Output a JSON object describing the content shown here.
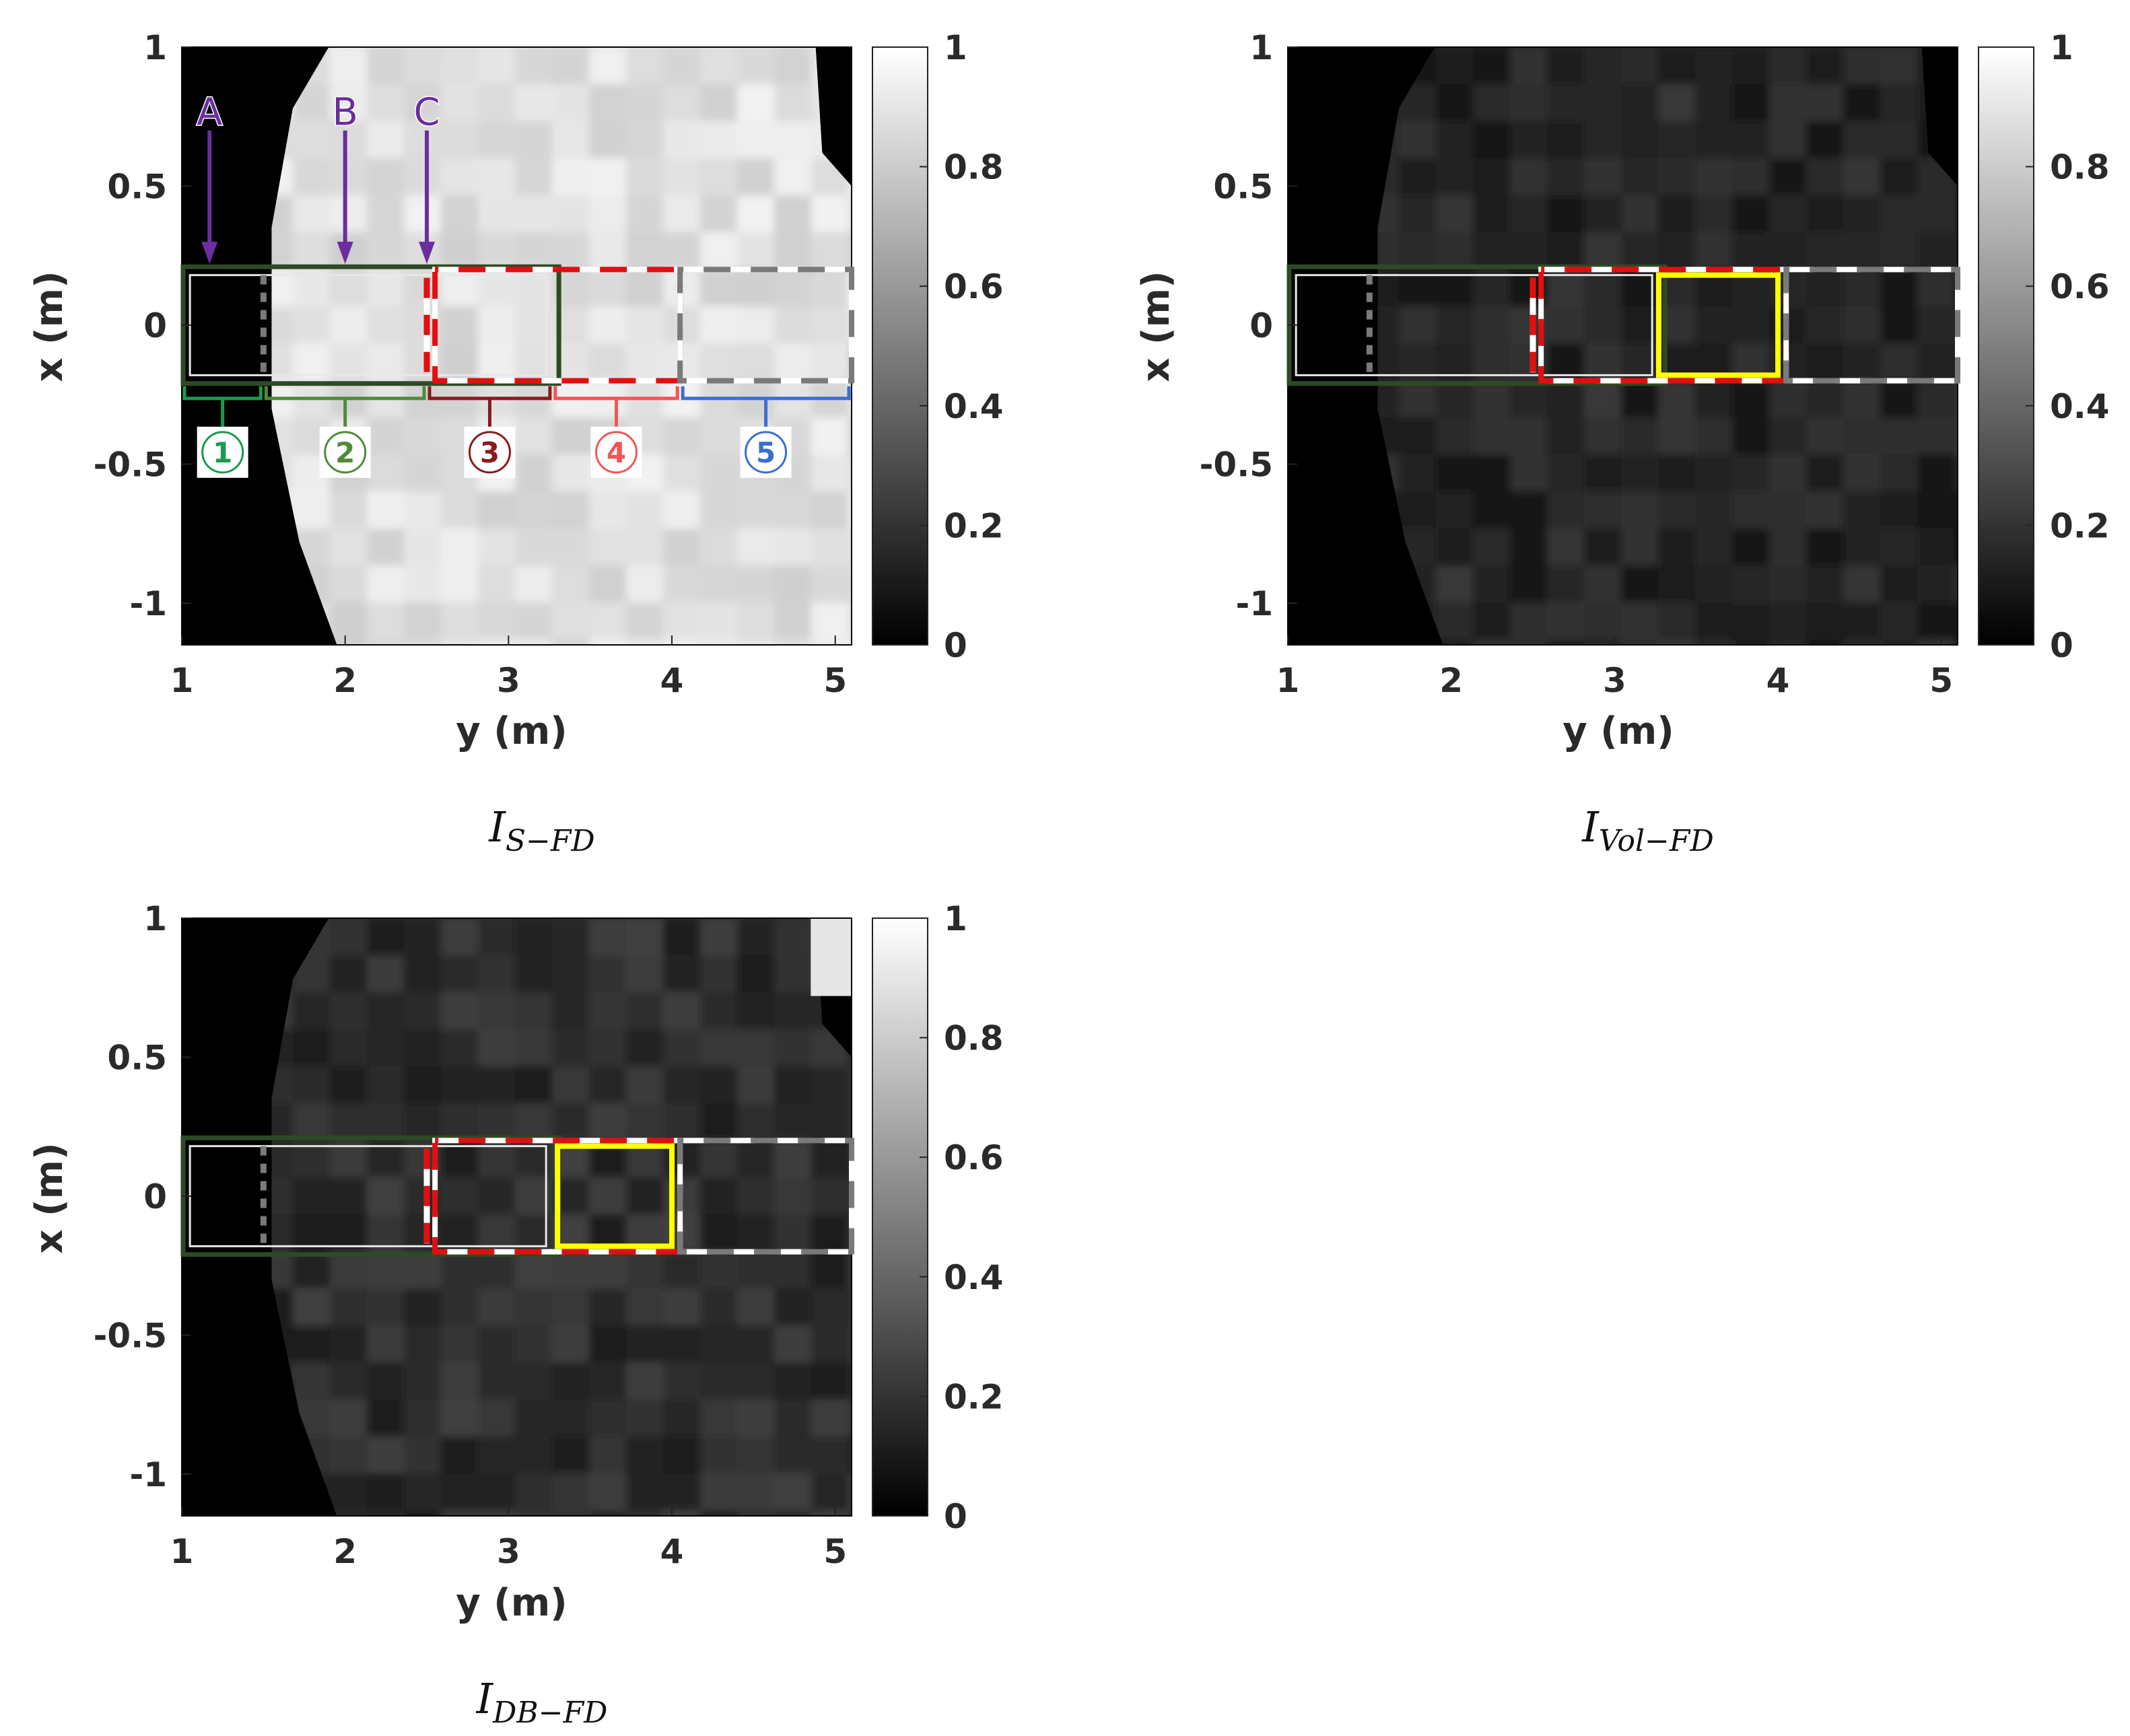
{
  "chart_data": [
    {
      "type": "heatmap",
      "caption": {
        "base": "I",
        "sub": "S−FD"
      },
      "xlabel": "y (m)",
      "ylabel": "x (m)",
      "xlim": [
        1,
        5.1
      ],
      "ylim": [
        -1.15,
        1
      ],
      "xticks": [
        1,
        2,
        3,
        4,
        5
      ],
      "yticks": [
        1,
        0.5,
        0,
        -0.5,
        -1
      ],
      "xtick_labels": [
        "1",
        "2",
        "3",
        "4",
        "5"
      ],
      "ytick_labels": [
        "1",
        "0.5",
        "0",
        "-0.5",
        "-1"
      ],
      "colorbar": {
        "range": [
          0,
          1
        ],
        "ticks": [
          0,
          0.2,
          0.4,
          0.6,
          0.8,
          1
        ],
        "labels": [
          "0",
          "0.2",
          "0.4",
          "0.6",
          "0.8",
          "1"
        ],
        "colormap": "gray"
      },
      "background_level": 0.88,
      "point_markers": [
        {
          "label": "A",
          "y": 1.17
        },
        {
          "label": "B",
          "y": 2.0
        },
        {
          "label": "C",
          "y": 2.5
        }
      ],
      "segments": [
        {
          "label": "1",
          "y": [
            1.0,
            1.5
          ],
          "color": "#1b9a4e"
        },
        {
          "label": "2",
          "y": [
            1.5,
            2.5
          ],
          "color": "#4f8a3a"
        },
        {
          "label": "3",
          "y": [
            2.5,
            3.27
          ],
          "color": "#8b1a1a"
        },
        {
          "label": "4",
          "y": [
            3.27,
            4.05
          ],
          "color": "#f25555"
        },
        {
          "label": "5",
          "y": [
            4.05,
            5.1
          ],
          "color": "#3a6fd0"
        }
      ],
      "highlight_box": null
    },
    {
      "type": "heatmap",
      "caption": {
        "base": "I",
        "sub": "Vol−FD"
      },
      "xlabel": "y (m)",
      "ylabel": "x (m)",
      "xlim": [
        1,
        5.1
      ],
      "ylim": [
        -1.15,
        1
      ],
      "xticks": [
        1,
        2,
        3,
        4,
        5
      ],
      "yticks": [
        1,
        0.5,
        0,
        -0.5,
        -1
      ],
      "xtick_labels": [
        "1",
        "2",
        "3",
        "4",
        "5"
      ],
      "ytick_labels": [
        "1",
        "0.5",
        "0",
        "-0.5",
        "-1"
      ],
      "colorbar": {
        "range": [
          0,
          1
        ],
        "ticks": [
          0,
          0.2,
          0.4,
          0.6,
          0.8,
          1
        ],
        "labels": [
          "0",
          "0.2",
          "0.4",
          "0.6",
          "0.8",
          "1"
        ],
        "colormap": "gray"
      },
      "background_level": 0.15,
      "highlight_box": {
        "y": [
          3.27,
          4.0
        ],
        "x": [
          -0.18,
          0.18
        ],
        "color": "#ffff00"
      }
    },
    {
      "type": "heatmap",
      "caption": {
        "base": "I",
        "sub": "DB−FD"
      },
      "xlabel": "y (m)",
      "ylabel": "x (m)",
      "xlim": [
        1,
        5.1
      ],
      "ylim": [
        -1.15,
        1
      ],
      "xticks": [
        1,
        2,
        3,
        4,
        5
      ],
      "yticks": [
        1,
        0.5,
        0,
        -0.5,
        -1
      ],
      "xtick_labels": [
        "1",
        "2",
        "3",
        "4",
        "5"
      ],
      "ytick_labels": [
        "1",
        "0.5",
        "0",
        "-0.5",
        "-1"
      ],
      "colorbar": {
        "range": [
          0,
          1
        ],
        "ticks": [
          0,
          0.2,
          0.4,
          0.6,
          0.8,
          1
        ],
        "labels": [
          "0",
          "0.2",
          "0.4",
          "0.6",
          "0.8",
          "1"
        ],
        "colormap": "gray"
      },
      "background_level": 0.18,
      "highlight_box": {
        "y": [
          3.3,
          4.0
        ],
        "x": [
          -0.18,
          0.18
        ],
        "color": "#ffff00"
      }
    }
  ],
  "colors": {
    "mask": "#000000",
    "outer_box": "#2d4a25",
    "inner_box": "#e8e8e8",
    "dashed_red": "#e01010",
    "dashed_white": "#ffffff",
    "dashed_gray": "#7a7a7a",
    "marker_purple": "#6a2e9e"
  }
}
